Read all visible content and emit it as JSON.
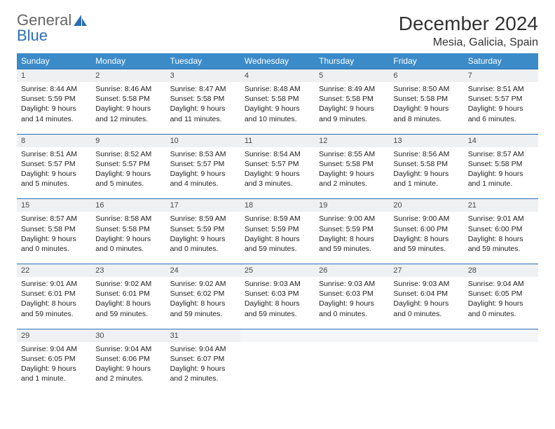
{
  "logo": {
    "line1": "General",
    "line2": "Blue"
  },
  "title": "December 2024",
  "location": "Mesia, Galicia, Spain",
  "colors": {
    "header_bg": "#3b8bc9",
    "header_text": "#ffffff",
    "daynum_bg": "#eef0f1",
    "daynum_border": "#2a6fb5",
    "body_text": "#222222",
    "logo_gray": "#666666",
    "logo_blue": "#2a6fb5"
  },
  "day_headers": [
    "Sunday",
    "Monday",
    "Tuesday",
    "Wednesday",
    "Thursday",
    "Friday",
    "Saturday"
  ],
  "weeks": [
    [
      {
        "n": "1",
        "sr": "8:44 AM",
        "ss": "5:59 PM",
        "dl": "9 hours and 14 minutes."
      },
      {
        "n": "2",
        "sr": "8:46 AM",
        "ss": "5:58 PM",
        "dl": "9 hours and 12 minutes."
      },
      {
        "n": "3",
        "sr": "8:47 AM",
        "ss": "5:58 PM",
        "dl": "9 hours and 11 minutes."
      },
      {
        "n": "4",
        "sr": "8:48 AM",
        "ss": "5:58 PM",
        "dl": "9 hours and 10 minutes."
      },
      {
        "n": "5",
        "sr": "8:49 AM",
        "ss": "5:58 PM",
        "dl": "9 hours and 9 minutes."
      },
      {
        "n": "6",
        "sr": "8:50 AM",
        "ss": "5:58 PM",
        "dl": "9 hours and 8 minutes."
      },
      {
        "n": "7",
        "sr": "8:51 AM",
        "ss": "5:57 PM",
        "dl": "9 hours and 6 minutes."
      }
    ],
    [
      {
        "n": "8",
        "sr": "8:51 AM",
        "ss": "5:57 PM",
        "dl": "9 hours and 5 minutes."
      },
      {
        "n": "9",
        "sr": "8:52 AM",
        "ss": "5:57 PM",
        "dl": "9 hours and 5 minutes."
      },
      {
        "n": "10",
        "sr": "8:53 AM",
        "ss": "5:57 PM",
        "dl": "9 hours and 4 minutes."
      },
      {
        "n": "11",
        "sr": "8:54 AM",
        "ss": "5:57 PM",
        "dl": "9 hours and 3 minutes."
      },
      {
        "n": "12",
        "sr": "8:55 AM",
        "ss": "5:58 PM",
        "dl": "9 hours and 2 minutes."
      },
      {
        "n": "13",
        "sr": "8:56 AM",
        "ss": "5:58 PM",
        "dl": "9 hours and 1 minute."
      },
      {
        "n": "14",
        "sr": "8:57 AM",
        "ss": "5:58 PM",
        "dl": "9 hours and 1 minute."
      }
    ],
    [
      {
        "n": "15",
        "sr": "8:57 AM",
        "ss": "5:58 PM",
        "dl": "9 hours and 0 minutes."
      },
      {
        "n": "16",
        "sr": "8:58 AM",
        "ss": "5:58 PM",
        "dl": "9 hours and 0 minutes."
      },
      {
        "n": "17",
        "sr": "8:59 AM",
        "ss": "5:59 PM",
        "dl": "9 hours and 0 minutes."
      },
      {
        "n": "18",
        "sr": "8:59 AM",
        "ss": "5:59 PM",
        "dl": "8 hours and 59 minutes."
      },
      {
        "n": "19",
        "sr": "9:00 AM",
        "ss": "5:59 PM",
        "dl": "8 hours and 59 minutes."
      },
      {
        "n": "20",
        "sr": "9:00 AM",
        "ss": "6:00 PM",
        "dl": "8 hours and 59 minutes."
      },
      {
        "n": "21",
        "sr": "9:01 AM",
        "ss": "6:00 PM",
        "dl": "8 hours and 59 minutes."
      }
    ],
    [
      {
        "n": "22",
        "sr": "9:01 AM",
        "ss": "6:01 PM",
        "dl": "8 hours and 59 minutes."
      },
      {
        "n": "23",
        "sr": "9:02 AM",
        "ss": "6:01 PM",
        "dl": "8 hours and 59 minutes."
      },
      {
        "n": "24",
        "sr": "9:02 AM",
        "ss": "6:02 PM",
        "dl": "8 hours and 59 minutes."
      },
      {
        "n": "25",
        "sr": "9:03 AM",
        "ss": "6:03 PM",
        "dl": "8 hours and 59 minutes."
      },
      {
        "n": "26",
        "sr": "9:03 AM",
        "ss": "6:03 PM",
        "dl": "9 hours and 0 minutes."
      },
      {
        "n": "27",
        "sr": "9:03 AM",
        "ss": "6:04 PM",
        "dl": "9 hours and 0 minutes."
      },
      {
        "n": "28",
        "sr": "9:04 AM",
        "ss": "6:05 PM",
        "dl": "9 hours and 0 minutes."
      }
    ],
    [
      {
        "n": "29",
        "sr": "9:04 AM",
        "ss": "6:05 PM",
        "dl": "9 hours and 1 minute."
      },
      {
        "n": "30",
        "sr": "9:04 AM",
        "ss": "6:06 PM",
        "dl": "9 hours and 2 minutes."
      },
      {
        "n": "31",
        "sr": "9:04 AM",
        "ss": "6:07 PM",
        "dl": "9 hours and 2 minutes."
      },
      null,
      null,
      null,
      null
    ]
  ],
  "labels": {
    "sunrise": "Sunrise:",
    "sunset": "Sunset:",
    "daylight": "Daylight:"
  }
}
